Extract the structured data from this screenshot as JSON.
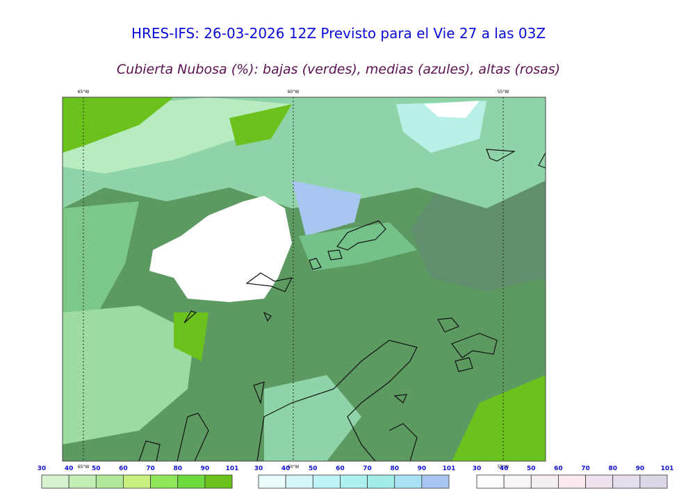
{
  "header": {
    "title": "HRES-IFS: 26-03-2026 12Z Previsto para el Vie 27 a las 03Z",
    "subtitle": "Cubierta Nubosa (%): bajas (verdes), medias (azules), altas (rosas)"
  },
  "map": {
    "lon_labels_top": [
      "65°W",
      "60°W",
      "55°W"
    ],
    "lon_labels_bottom": [
      "65°W",
      "60°W",
      "55°W"
    ]
  },
  "legends": [
    {
      "labels": [
        30,
        40,
        50,
        60,
        70,
        80,
        90,
        101
      ],
      "colors": [
        "#d6f2cf",
        "#c3efb4",
        "#b0e99a",
        "#c8f080",
        "#8ee658",
        "#6ddb3e",
        "#6cc21c"
      ]
    },
    {
      "labels": [
        30,
        40,
        50,
        60,
        70,
        80,
        90,
        101
      ],
      "colors": [
        "#eafbfc",
        "#d6f7fa",
        "#c0f3f7",
        "#aef0f2",
        "#a2ecea",
        "#a8e2f4",
        "#a9c6f0"
      ]
    },
    {
      "labels": [
        30,
        40,
        50,
        60,
        70,
        80,
        90,
        101
      ],
      "colors": [
        "#fdfdfd",
        "#f8f4f7",
        "#f5eef3",
        "#fae9ef",
        "#eee2ee",
        "#e6dfeb",
        "#ddd6e6"
      ]
    }
  ]
}
